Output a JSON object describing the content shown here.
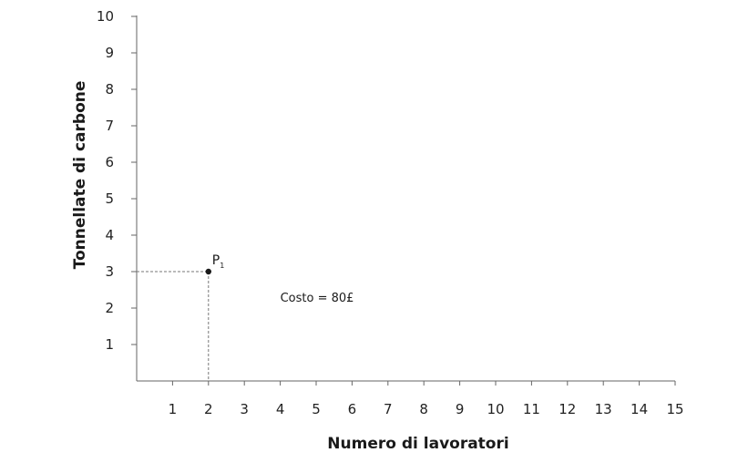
{
  "chart_data": {
    "type": "scatter",
    "title": "",
    "xlabel": "Numero di lavoratori",
    "ylabel": "Tonnellate di carbone",
    "xlim": [
      0,
      15
    ],
    "ylim": [
      0,
      10
    ],
    "x_ticks": [
      1,
      2,
      3,
      4,
      5,
      6,
      7,
      8,
      9,
      10,
      11,
      12,
      13,
      14,
      15
    ],
    "y_ticks": [
      1,
      2,
      3,
      4,
      5,
      6,
      7,
      8,
      9,
      10
    ],
    "grid": false,
    "legend": "none",
    "points": [
      {
        "label": "P",
        "subscript": "1",
        "x": 2,
        "y": 3
      }
    ],
    "annotations": [
      {
        "text": "Costo = 80£",
        "x": 4,
        "y": 2.3
      }
    ],
    "colors": {
      "axis": "#666666",
      "point": "#1a1a1a",
      "guide": "#777777",
      "text": "#1a1a1a"
    }
  }
}
